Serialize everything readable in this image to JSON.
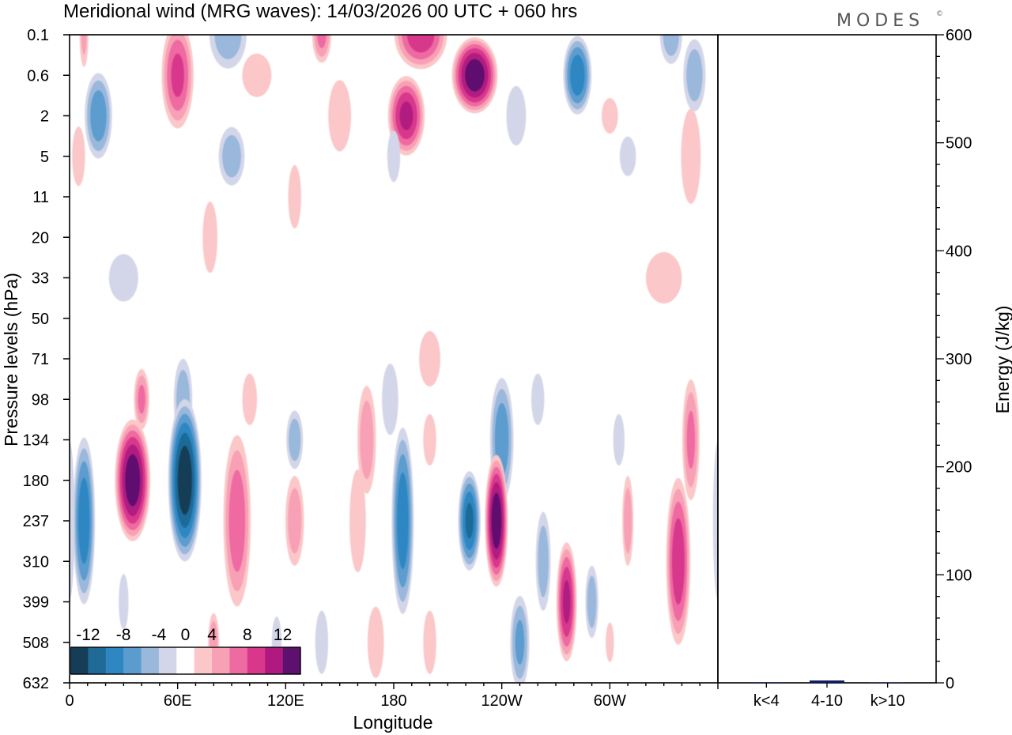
{
  "figure": {
    "title": "Meridional wind (MRG waves):  14/03/2026  00 UTC  + 060 hrs",
    "logo": "MODES",
    "logo_mark": "©"
  },
  "chart_data": [
    {
      "type": "heatmap",
      "title": "Meridional wind (MRG waves)",
      "xlabel": "Longitude",
      "ylabel": "Pressure levels (hPa)",
      "x_ticks": [
        "0",
        "60E",
        "120E",
        "180",
        "120W",
        "60W"
      ],
      "x_tick_degrees": [
        0,
        60,
        120,
        180,
        240,
        300
      ],
      "xlim": [
        0,
        360
      ],
      "y_ticks": [
        "0.1",
        "0.6",
        "2",
        "5",
        "11",
        "20",
        "33",
        "50",
        "71",
        "98",
        "134",
        "180",
        "237",
        "310",
        "399",
        "508",
        "632"
      ],
      "colorbar": {
        "labels": [
          "-12",
          "-8",
          "-4",
          "0",
          "4",
          "8",
          "12"
        ],
        "levels": [
          -14,
          -12,
          -10,
          -8,
          -6,
          -4,
          -2,
          2,
          4,
          6,
          8,
          10,
          12,
          14
        ],
        "colors": [
          "#163d57",
          "#1f6a97",
          "#2f87c2",
          "#5b9cce",
          "#9ab8dc",
          "#d3d6e8",
          "#ffffff",
          "#fbc7c8",
          "#f7a0b6",
          "#ee6ba1",
          "#d8378b",
          "#b01a80",
          "#5e106e"
        ]
      },
      "blobs": [
        {
          "lon": 8,
          "p": "0.1",
          "w": 5,
          "h": 1.5,
          "v": 4
        },
        {
          "lon": 60,
          "p": "0.6",
          "w": 16,
          "h": 2.2,
          "v": 8
        },
        {
          "lon": 88,
          "p": "0.1",
          "w": 20,
          "h": 1.5,
          "v": -5
        },
        {
          "lon": 140,
          "p": "0.1",
          "w": 10,
          "h": 1.2,
          "v": 6
        },
        {
          "lon": 195,
          "p": "0.1",
          "w": 26,
          "h": 1.4,
          "v": 9
        },
        {
          "lon": 225,
          "p": "0.6",
          "w": 22,
          "h": 1.5,
          "v": 13
        },
        {
          "lon": 282,
          "p": "0.6",
          "w": 14,
          "h": 1.6,
          "v": -9
        },
        {
          "lon": 334,
          "p": "0.1",
          "w": 12,
          "h": 1.3,
          "v": -5
        },
        {
          "lon": 347,
          "p": "0.6",
          "w": 12,
          "h": 1.6,
          "v": -5
        },
        {
          "lon": 16,
          "p": "2",
          "w": 14,
          "h": 1.8,
          "v": -7
        },
        {
          "lon": 187,
          "p": "2",
          "w": 18,
          "h": 1.6,
          "v": 10
        },
        {
          "lon": 150,
          "p": "2",
          "w": 14,
          "h": 1.8,
          "v": 3
        },
        {
          "lon": 104,
          "p": "0.6",
          "w": 18,
          "h": 1.1,
          "v": 3
        },
        {
          "lon": 90,
          "p": "5",
          "w": 14,
          "h": 1.3,
          "v": -5
        },
        {
          "lon": 5,
          "p": "5",
          "w": 8,
          "h": 1.5,
          "v": 3
        },
        {
          "lon": 248,
          "p": "2",
          "w": 12,
          "h": 1.5,
          "v": -3
        },
        {
          "lon": 345,
          "p": "5",
          "w": 12,
          "h": 2.4,
          "v": 3
        },
        {
          "lon": 300,
          "p": "2",
          "w": 10,
          "h": 0.9,
          "v": 3
        },
        {
          "lon": 125,
          "p": "11",
          "w": 8,
          "h": 1.6,
          "v": 3
        },
        {
          "lon": 78,
          "p": "20",
          "w": 9,
          "h": 1.8,
          "v": 3
        },
        {
          "lon": 180,
          "p": "5",
          "w": 8,
          "h": 1.3,
          "v": -3
        },
        {
          "lon": 330,
          "p": "33",
          "w": 22,
          "h": 1.3,
          "v": 3
        },
        {
          "lon": 30,
          "p": "33",
          "w": 18,
          "h": 1.2,
          "v": -3
        },
        {
          "lon": 310,
          "p": "5",
          "w": 10,
          "h": 1.0,
          "v": -3
        },
        {
          "lon": 40,
          "p": "98",
          "w": 8,
          "h": 1.3,
          "v": 6
        },
        {
          "lon": 63,
          "p": "98",
          "w": 10,
          "h": 1.8,
          "v": -5
        },
        {
          "lon": 100,
          "p": "98",
          "w": 9,
          "h": 1.3,
          "v": 3
        },
        {
          "lon": 165,
          "p": "134",
          "w": 10,
          "h": 2.4,
          "v": 5
        },
        {
          "lon": 178,
          "p": "98",
          "w": 10,
          "h": 1.8,
          "v": -3
        },
        {
          "lon": 200,
          "p": "71",
          "w": 13,
          "h": 1.4,
          "v": 3
        },
        {
          "lon": 240,
          "p": "134",
          "w": 12,
          "h": 2.6,
          "v": -7
        },
        {
          "lon": 260,
          "p": "98",
          "w": 8,
          "h": 1.3,
          "v": -3
        },
        {
          "lon": 345,
          "p": "134",
          "w": 9,
          "h": 2.6,
          "v": 6
        },
        {
          "lon": 305,
          "p": "134",
          "w": 7,
          "h": 1.3,
          "v": -3
        },
        {
          "lon": 125,
          "p": "134",
          "w": 9,
          "h": 1.3,
          "v": -5
        },
        {
          "lon": 200,
          "p": "134",
          "w": 8,
          "h": 1.3,
          "v": 3
        },
        {
          "lon": 8,
          "p": "237",
          "w": 11,
          "h": 3.4,
          "v": -9
        },
        {
          "lon": 35,
          "p": "180",
          "w": 17,
          "h": 2.4,
          "v": 13
        },
        {
          "lon": 64,
          "p": "180",
          "w": 16,
          "h": 3.2,
          "v": -13
        },
        {
          "lon": 93,
          "p": "237",
          "w": 14,
          "h": 3.6,
          "v": 7
        },
        {
          "lon": 125,
          "p": "237",
          "w": 10,
          "h": 2.0,
          "v": 5
        },
        {
          "lon": 160,
          "p": "237",
          "w": 10,
          "h": 2.6,
          "v": 3
        },
        {
          "lon": 185,
          "p": "237",
          "w": 11,
          "h": 3.8,
          "v": -9
        },
        {
          "lon": 222,
          "p": "237",
          "w": 11,
          "h": 2.0,
          "v": -10
        },
        {
          "lon": 237,
          "p": "237",
          "w": 11,
          "h": 2.6,
          "v": 13
        },
        {
          "lon": 263,
          "p": "310",
          "w": 8,
          "h": 2.2,
          "v": -5
        },
        {
          "lon": 276,
          "p": "399",
          "w": 10,
          "h": 2.4,
          "v": 10
        },
        {
          "lon": 310,
          "p": "237",
          "w": 6,
          "h": 2.0,
          "v": 5
        },
        {
          "lon": 338,
          "p": "310",
          "w": 12,
          "h": 3.4,
          "v": 9
        },
        {
          "lon": 290,
          "p": "399",
          "w": 7,
          "h": 1.6,
          "v": -5
        },
        {
          "lon": 300,
          "p": "508",
          "w": 5,
          "h": 1.0,
          "v": 3
        },
        {
          "lon": 200,
          "p": "508",
          "w": 8,
          "h": 1.6,
          "v": 3
        },
        {
          "lon": 250,
          "p": "508",
          "w": 10,
          "h": 2.0,
          "v": -6
        },
        {
          "lon": 170,
          "p": "508",
          "w": 10,
          "h": 1.8,
          "v": 3
        },
        {
          "lon": 140,
          "p": "508",
          "w": 8,
          "h": 1.6,
          "v": -3
        },
        {
          "lon": 30,
          "p": "399",
          "w": 6,
          "h": 1.4,
          "v": -3
        },
        {
          "lon": 115,
          "p": "508",
          "w": 6,
          "h": 1.3,
          "v": -3
        },
        {
          "lon": 80,
          "p": "508",
          "w": 6,
          "h": 1.3,
          "v": 5
        },
        {
          "lon": 360,
          "p": "237",
          "w": 6,
          "h": 4.0,
          "v": -3
        }
      ]
    },
    {
      "type": "bar",
      "ylabel": "Energy (J/kg)",
      "categories": [
        "k<4",
        "4-10",
        "k>10"
      ],
      "values": [
        0.5,
        2.2,
        0.4
      ],
      "bar_color": "#101a66",
      "ylim": [
        0,
        600
      ],
      "y_ticks": [
        "0",
        "100",
        "200",
        "300",
        "400",
        "500",
        "600"
      ],
      "y_tick_values": [
        0,
        100,
        200,
        300,
        400,
        500,
        600
      ],
      "y_minor_step": 20
    }
  ]
}
